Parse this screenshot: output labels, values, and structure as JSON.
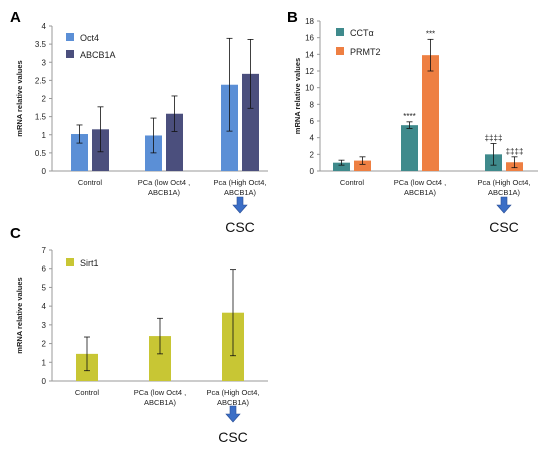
{
  "colors": {
    "oct4": "#5b8fd6",
    "abcb1a": "#4b4f7d",
    "ccta": "#3f8a8c",
    "prmt2": "#ee7f42",
    "sirt1": "#c8c634",
    "arrow": "#3b6ec6"
  },
  "chart_data": [
    {
      "type": "bar",
      "panel": "A",
      "categories": [
        "Control",
        "PCa (low Oct4 ,\nABCB1A)",
        "Pca (High Oct4,\nABCB1A)"
      ],
      "ylabel": "mRNA relative values",
      "ylim": [
        0,
        4
      ],
      "yticks": [
        "0",
        "0.5",
        "1",
        "1.5",
        "2",
        "2.5",
        "3",
        "3.5",
        "4"
      ],
      "legend_position": "top-left",
      "series": [
        {
          "name": "Oct4",
          "color_key": "oct4",
          "values": [
            1.02,
            0.98,
            2.38
          ],
          "errors": [
            0.25,
            0.48,
            1.28
          ],
          "sig": [
            "",
            "",
            ""
          ]
        },
        {
          "name": "ABCB1A",
          "color_key": "abcb1a",
          "values": [
            1.15,
            1.58,
            2.68
          ],
          "errors": [
            0.62,
            0.49,
            0.95
          ],
          "sig": [
            "",
            "",
            ""
          ]
        }
      ],
      "annotation": {
        "label": "CSC",
        "category_index": 2
      }
    },
    {
      "type": "bar",
      "panel": "B",
      "categories": [
        "Control",
        "PCa (low Oct4 ,\nABCB1A)",
        "Pca (High Oct4,\nABCB1A)"
      ],
      "ylabel": "mRNA relative values",
      "ylim": [
        0,
        18
      ],
      "yticks": [
        "0",
        "2",
        "4",
        "6",
        "8",
        "10",
        "12",
        "14",
        "16",
        "18"
      ],
      "legend_position": "top-left",
      "series": [
        {
          "name": "CCTα",
          "color_key": "ccta",
          "values": [
            1.0,
            5.5,
            2.0
          ],
          "errors": [
            0.3,
            0.4,
            1.3
          ],
          "sig": [
            "",
            "****",
            "‡‡‡‡"
          ]
        },
        {
          "name": "PRMT2",
          "color_key": "prmt2",
          "values": [
            1.25,
            13.9,
            1.05
          ],
          "errors": [
            0.45,
            1.9,
            0.65
          ],
          "sig": [
            "",
            "***",
            "‡‡‡‡"
          ]
        }
      ],
      "annotation": {
        "label": "CSC",
        "category_index": 2
      }
    },
    {
      "type": "bar",
      "panel": "C",
      "categories": [
        "Control",
        "PCa (low Oct4 ,\nABCB1A)",
        "Pca (High Oct4,\nABCB1A)"
      ],
      "ylabel": "mRNA relative values",
      "ylim": [
        0,
        7
      ],
      "yticks": [
        "0",
        "1",
        "2",
        "3",
        "4",
        "5",
        "6",
        "7"
      ],
      "legend_position": "top-left",
      "series": [
        {
          "name": "Sirt1",
          "color_key": "sirt1",
          "values": [
            1.45,
            2.4,
            3.65
          ],
          "errors": [
            0.9,
            0.95,
            2.3
          ],
          "sig": [
            "",
            "",
            ""
          ]
        }
      ],
      "annotation": {
        "label": "CSC",
        "category_index": 2
      }
    }
  ]
}
